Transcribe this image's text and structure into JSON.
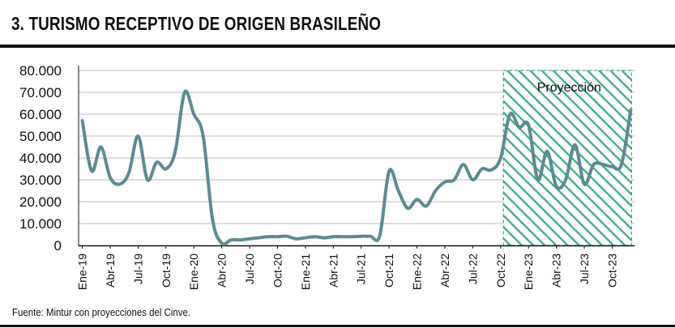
{
  "title": "3. TURISMO RECEPTIVO DE ORIGEN BRASILEÑO",
  "source": "Fuente: Mintur con proyecciones del Cinve.",
  "colors": {
    "line": "#5b8c91",
    "grid": "#bfbfbf",
    "projection_hatch": "#3aaa87",
    "rule": "#111111"
  },
  "chart_data": {
    "type": "line",
    "title": "3. TURISMO RECEPTIVO DE ORIGEN BRASILEÑO",
    "xlabel": "",
    "ylabel": "",
    "ylim": [
      0,
      80000
    ],
    "grid": true,
    "y_ticks": [
      "80.000",
      "70.000",
      "60.000",
      "50.000",
      "40.000",
      "30.000",
      "20.000",
      "10.000",
      "0"
    ],
    "x_tick_labels": [
      "Ene-19",
      "Abr-19",
      "Jul-19",
      "Oct-19",
      "Ene-20",
      "Abr-20",
      "Jul-20",
      "Oct-20",
      "Ene-21",
      "Abr-21",
      "Jul-21",
      "Oct-21",
      "Ene-22",
      "Abr-22",
      "Jul-22",
      "Oct-22",
      "Ene-23",
      "Abr-23",
      "Jul-23",
      "Oct-23"
    ],
    "x_tick_months": [
      0,
      3,
      6,
      9,
      12,
      15,
      18,
      21,
      24,
      27,
      30,
      33,
      36,
      39,
      42,
      45,
      48,
      51,
      54,
      57
    ],
    "projection": {
      "label": "Proyección",
      "start_month": 45.3,
      "end_month": 59
    },
    "series": [
      {
        "months": [
          0,
          1,
          2,
          3,
          4,
          5,
          6,
          7,
          8,
          9,
          10,
          11,
          12,
          13,
          14,
          15,
          16,
          17,
          18,
          19,
          20,
          21,
          22,
          23,
          24,
          25,
          26,
          27,
          28,
          29,
          30,
          31,
          32,
          33,
          34,
          35,
          36,
          37,
          38,
          39,
          40,
          41,
          42,
          43,
          44,
          45,
          46,
          47,
          48,
          49,
          50,
          51,
          52,
          53,
          54,
          55,
          56,
          57,
          58,
          59
        ],
        "values": [
          57000,
          34000,
          45000,
          31000,
          28000,
          33000,
          50000,
          30000,
          38000,
          35000,
          43000,
          70000,
          60000,
          50000,
          12000,
          1000,
          2500,
          2500,
          3000,
          3500,
          4000,
          4000,
          4200,
          3000,
          3500,
          4000,
          3500,
          4000,
          4000,
          4000,
          4200,
          4200,
          4500,
          34000,
          25000,
          17000,
          21000,
          18000,
          25000,
          29000,
          30000,
          37000,
          30000,
          35000,
          34500,
          40000,
          60000,
          54000,
          55000,
          30000,
          43000,
          27000,
          30000,
          46000,
          28000,
          37000,
          37000,
          36000,
          37000,
          62000
        ]
      }
    ]
  }
}
